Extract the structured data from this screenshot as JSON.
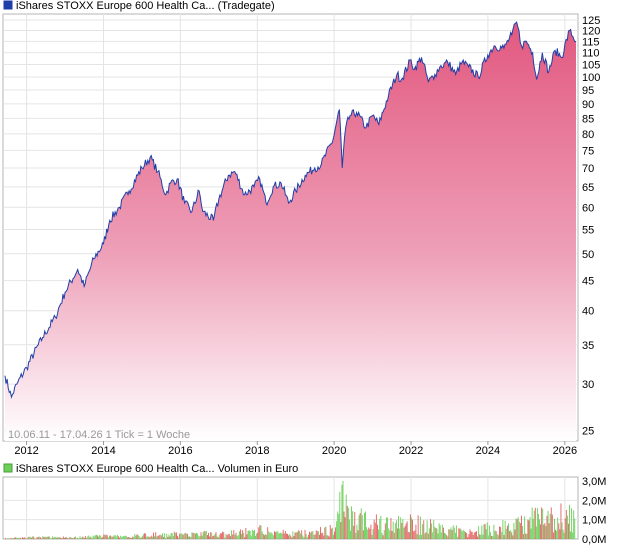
{
  "chart_data": [
    {
      "type": "area",
      "title": "iShares STOXX Europe 600 Health Ca... (Tradegate)",
      "subtitle": "10.06.11 - 17.04.26   1 Tick = 1 Woche",
      "xlabel": "",
      "ylabel": "",
      "y_scale": "log",
      "ylim": [
        24,
        128
      ],
      "xlim": [
        "2011-06-10",
        "2026-04-17"
      ],
      "x_ticks": [
        "2012",
        "2014",
        "2016",
        "2018",
        "2020",
        "2022",
        "2024",
        "2026"
      ],
      "y_ticks": [
        25,
        30,
        35,
        40,
        45,
        50,
        55,
        60,
        65,
        70,
        75,
        80,
        85,
        90,
        95,
        100,
        105,
        110,
        115,
        120,
        125
      ],
      "grid": true,
      "legend": "top-left",
      "colors": {
        "line": "#1f3fa8",
        "fill_top": "#e2587f",
        "fill_bottom": "#ffffff",
        "legend_box": "#1f3fa8"
      },
      "series": [
        {
          "name": "iShares STOXX Europe 600 Health Ca... (Tradegate)",
          "x": [
            "2011-06-10",
            "2011-08-10",
            "2011-10-01",
            "2012-01-01",
            "2012-06-01",
            "2012-10-01",
            "2013-01-01",
            "2013-05-01",
            "2013-07-01",
            "2013-10-01",
            "2014-01-01",
            "2014-03-01",
            "2014-06-01",
            "2014-09-01",
            "2015-01-01",
            "2015-03-20",
            "2015-06-01",
            "2015-08-15",
            "2015-09-30",
            "2015-12-01",
            "2016-02-10",
            "2016-04-20",
            "2016-06-27",
            "2016-08-01",
            "2016-11-10",
            "2017-01-01",
            "2017-04-01",
            "2017-06-01",
            "2017-09-01",
            "2017-12-01",
            "2018-01-25",
            "2018-03-25",
            "2018-06-01",
            "2018-08-15",
            "2018-10-25",
            "2019-01-01",
            "2019-04-01",
            "2019-07-01",
            "2019-09-01",
            "2019-12-20",
            "2020-02-20",
            "2020-03-18",
            "2020-04-20",
            "2020-06-01",
            "2020-08-01",
            "2020-10-30",
            "2021-01-01",
            "2021-03-01",
            "2021-06-01",
            "2021-08-20",
            "2021-10-01",
            "2021-12-31",
            "2022-02-01",
            "2022-04-10",
            "2022-06-15",
            "2022-08-15",
            "2022-10-01",
            "2022-12-15",
            "2023-03-01",
            "2023-05-01",
            "2023-07-01",
            "2023-10-01",
            "2023-12-31",
            "2024-03-01",
            "2024-06-01",
            "2024-08-15",
            "2024-09-30",
            "2024-11-15",
            "2025-01-01",
            "2025-03-01",
            "2025-04-08",
            "2025-06-01",
            "2025-08-01",
            "2025-10-01",
            "2025-12-01",
            "2026-02-15",
            "2026-04-17"
          ],
          "y": [
            31,
            28.5,
            30,
            32,
            36,
            39,
            43,
            47,
            44,
            49,
            52,
            57,
            60,
            64,
            70,
            73,
            69,
            63,
            66,
            67,
            61,
            59,
            64,
            59,
            57,
            62,
            68,
            69,
            63,
            65,
            67,
            61,
            65,
            66,
            61,
            64,
            68,
            70,
            71,
            78,
            88,
            70,
            82,
            86,
            87,
            82,
            86,
            83,
            93,
            101,
            99,
            107,
            103,
            108,
            98,
            101,
            104,
            106,
            101,
            106,
            104,
            100,
            109,
            113,
            112,
            118,
            124,
            113,
            115,
            110,
            99,
            110,
            102,
            111,
            108,
            120,
            115
          ]
        }
      ]
    },
    {
      "type": "bar",
      "title": "iShares STOXX Europe 600 Health Ca... Volumen in Euro",
      "ylabel": "",
      "ylim": [
        0,
        3.0
      ],
      "y_ticks": [
        "0,0M",
        "1,0M",
        "2,0M",
        "3,0M"
      ],
      "legend": "top-left",
      "colors": {
        "up": "#6ccf5a",
        "down": "#e26060",
        "legend_box": "#6ccf5a"
      },
      "series": [
        {
          "name": "iShares STOXX Europe 600 Health Ca... Volumen in Euro",
          "x": [
            "2011-06",
            "2012-01",
            "2012-07",
            "2013-01",
            "2013-07",
            "2014-01",
            "2014-07",
            "2015-01",
            "2015-07",
            "2016-01",
            "2016-07",
            "2017-01",
            "2017-07",
            "2018-01",
            "2018-07",
            "2019-01",
            "2019-07",
            "2020-01",
            "2020-03",
            "2020-07",
            "2021-01",
            "2021-07",
            "2022-01",
            "2022-07",
            "2023-01",
            "2023-07",
            "2024-01",
            "2024-07",
            "2025-01",
            "2025-04",
            "2025-07",
            "2026-01",
            "2026-04"
          ],
          "values": [
            0.05,
            0.1,
            0.12,
            0.1,
            0.15,
            0.2,
            0.15,
            0.25,
            0.3,
            0.3,
            0.35,
            0.3,
            0.4,
            0.6,
            0.4,
            0.35,
            0.45,
            0.6,
            2.8,
            1.4,
            1.0,
            0.9,
            1.0,
            0.8,
            0.6,
            0.5,
            0.7,
            0.8,
            1.0,
            1.6,
            1.2,
            1.5,
            1.3
          ]
        }
      ]
    }
  ]
}
